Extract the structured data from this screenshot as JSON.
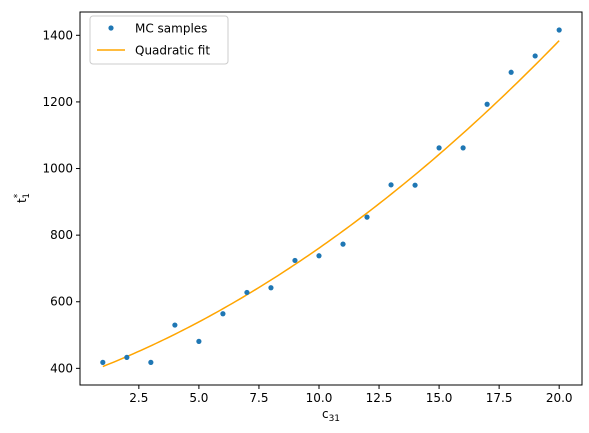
{
  "chart_data": {
    "type": "scatter",
    "title": "",
    "xlabel_base": "c",
    "xlabel_sub": "31",
    "ylabel_base": "t",
    "ylabel_sub": "1",
    "ylabel_sup": "*",
    "xlim": [
      0.05,
      20.95
    ],
    "ylim": [
      350,
      1470
    ],
    "xticks": [
      2.5,
      5.0,
      7.5,
      10.0,
      12.5,
      15.0,
      17.5,
      20.0
    ],
    "xtick_labels": [
      "2.5",
      "5.0",
      "7.5",
      "10.0",
      "12.5",
      "15.0",
      "17.5",
      "20.0"
    ],
    "yticks": [
      400,
      600,
      800,
      1000,
      1200,
      1400
    ],
    "ytick_labels": [
      "400",
      "600",
      "800",
      "1000",
      "1200",
      "1400"
    ],
    "grid": false,
    "legend_position": "top-left",
    "series": [
      {
        "name": "MC samples",
        "kind": "scatter",
        "color": "#1f77b4",
        "x": [
          1,
          2,
          3,
          4,
          5,
          6,
          7,
          8,
          9,
          10,
          11,
          12,
          13,
          14,
          15,
          16,
          17,
          18,
          19,
          20
        ],
        "y": [
          418,
          433,
          418,
          530,
          481,
          564,
          628,
          642,
          724,
          738,
          773,
          854,
          951,
          950,
          1062,
          1062,
          1193,
          1289,
          1338,
          1416
        ]
      },
      {
        "name": "Quadratic fit",
        "kind": "line",
        "color": "#ffa500",
        "x_range": [
          1,
          20
        ],
        "coefficients": {
          "a": 1.2,
          "b": 26.3,
          "c": 378
        }
      }
    ]
  }
}
